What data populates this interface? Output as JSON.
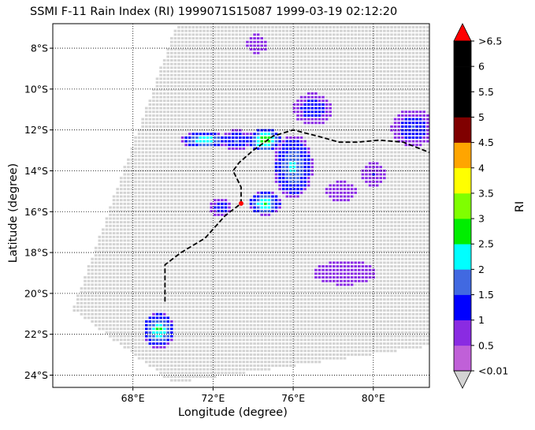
{
  "chart_data": {
    "type": "heatmap",
    "title": "SSMI F-11 Rain Index (RI) 1999071S15087 1999-03-19 02:12:20",
    "xlabel": "Longitude (degree)",
    "ylabel": "Latitude (degree)",
    "colorbar_label": "RI",
    "xlim": [
      64.0,
      82.8
    ],
    "ylim": [
      -24.6,
      -6.8
    ],
    "x_ticks": [
      {
        "value": 68,
        "label": "68°E"
      },
      {
        "value": 72,
        "label": "72°E"
      },
      {
        "value": 76,
        "label": "76°E"
      },
      {
        "value": 80,
        "label": "80°E"
      }
    ],
    "y_ticks": [
      {
        "value": -8,
        "label": "8°S"
      },
      {
        "value": -10,
        "label": "10°S"
      },
      {
        "value": -12,
        "label": "12°S"
      },
      {
        "value": -14,
        "label": "14°S"
      },
      {
        "value": -16,
        "label": "16°S"
      },
      {
        "value": -18,
        "label": "18°S"
      },
      {
        "value": -20,
        "label": "20°S"
      },
      {
        "value": -22,
        "label": "22°S"
      },
      {
        "value": -24,
        "label": "24°S"
      }
    ],
    "grid": "dotted",
    "swath": {
      "color": "#d3d3d3",
      "corners": [
        [
          70.2,
          -6.8
        ],
        [
          82.8,
          -6.8
        ],
        [
          82.8,
          -22.6
        ],
        [
          70.0,
          -24.4
        ],
        [
          65.0,
          -20.8
        ]
      ]
    },
    "colorbar": {
      "levels": [
        {
          "label": "<0.01",
          "color": "#c060d8"
        },
        {
          "label": "0.5",
          "color": "#8a2be2"
        },
        {
          "label": "1",
          "color": "#0000ff"
        },
        {
          "label": "1.5",
          "color": "#4169e1"
        },
        {
          "label": "2",
          "color": "#00ffff"
        },
        {
          "label": "2.5",
          "color": "#00ee00"
        },
        {
          "label": "3",
          "color": "#7fff00"
        },
        {
          "label": "3.5",
          "color": "#ffff00"
        },
        {
          "label": "4",
          "color": "#ffa500"
        },
        {
          "label": "4.5",
          "color": "#800000"
        },
        {
          "label": "5",
          "color": "#000000"
        },
        {
          "label": "5.5",
          "color": "#000000"
        },
        {
          "label": "6",
          "color": "#000000"
        },
        {
          "label": ">6.5",
          "color": "#000000"
        }
      ],
      "over_color": "#ff0000",
      "under_color": "#d3d3d3"
    },
    "rain_clusters": [
      {
        "lon": 71.6,
        "lat": -12.5,
        "rx": 1.2,
        "ry": 0.4,
        "max_ri": 2.3
      },
      {
        "lon": 73.2,
        "lat": -12.5,
        "rx": 0.9,
        "ry": 0.5,
        "max_ri": 1.2
      },
      {
        "lon": 74.6,
        "lat": -12.5,
        "rx": 0.8,
        "ry": 0.6,
        "max_ri": 3.0
      },
      {
        "lon": 76.0,
        "lat": -13.8,
        "rx": 1.0,
        "ry": 1.6,
        "max_ri": 1.8
      },
      {
        "lon": 74.6,
        "lat": -15.6,
        "rx": 0.8,
        "ry": 0.6,
        "max_ri": 2.4
      },
      {
        "lon": 72.4,
        "lat": -15.8,
        "rx": 0.6,
        "ry": 0.5,
        "max_ri": 1.0
      },
      {
        "lon": 77.0,
        "lat": -11.0,
        "rx": 1.0,
        "ry": 0.8,
        "max_ri": 1.0
      },
      {
        "lon": 82.0,
        "lat": -11.9,
        "rx": 1.1,
        "ry": 0.9,
        "max_ri": 1.1
      },
      {
        "lon": 69.3,
        "lat": -21.8,
        "rx": 0.8,
        "ry": 0.9,
        "max_ri": 2.3
      },
      {
        "lon": 78.6,
        "lat": -19.0,
        "rx": 1.6,
        "ry": 0.6,
        "max_ri": 0.2
      },
      {
        "lon": 80.0,
        "lat": -14.2,
        "rx": 0.6,
        "ry": 0.6,
        "max_ri": 0.6
      },
      {
        "lon": 78.4,
        "lat": -15.0,
        "rx": 0.8,
        "ry": 0.5,
        "max_ri": 0.5
      },
      {
        "lon": 74.2,
        "lat": -7.8,
        "rx": 0.5,
        "ry": 0.5,
        "max_ri": 0.1
      }
    ],
    "storm_track": {
      "color": "#000000",
      "style": "dashed",
      "lon": [
        69.6,
        69.6,
        70.4,
        71.6,
        72.6,
        73.4,
        73.4,
        73.0,
        73.3,
        74.0,
        75.0,
        76.0,
        77.2,
        78.3,
        79.2,
        80.3,
        81.5,
        82.8
      ],
      "lat": [
        -20.4,
        -18.6,
        -18.0,
        -17.3,
        -16.2,
        -15.6,
        -14.8,
        -14.0,
        -13.6,
        -13.0,
        -12.3,
        -12.0,
        -12.3,
        -12.6,
        -12.6,
        -12.5,
        -12.6,
        -13.1
      ]
    },
    "storm_position": {
      "lon": 73.4,
      "lat": -15.6,
      "color": "#ff0000"
    }
  }
}
